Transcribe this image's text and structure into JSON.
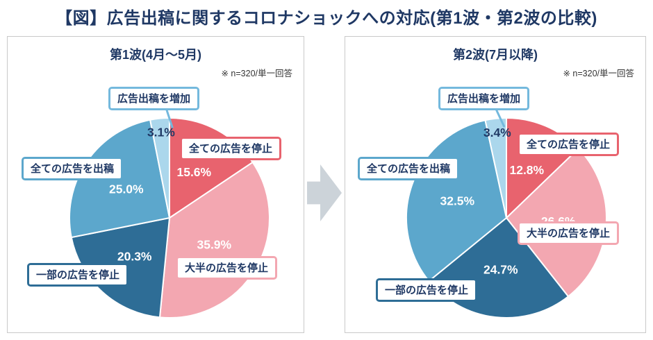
{
  "title": "【図】広告出稿に関するコロナショックへの対応(第1波・第2波の比較)",
  "colors": {
    "navy": "#1f3864",
    "red": "#e8636e",
    "pink": "#f3a7b1",
    "dark_blue": "#2e6d96",
    "mid_blue": "#5ca7cc",
    "light_blue": "#abd7ec",
    "light_blue_border": "#74b9dd",
    "arrow_gray": "#ccd3d9",
    "panel_border": "#c9c9c9"
  },
  "chart_data": [
    {
      "type": "pie",
      "title": "第1波(4月〜5月)",
      "note": "※ n=320/単一回答",
      "start_angle": "top",
      "direction": "clockwise",
      "legend": "callouts",
      "slices": [
        {
          "label": "全ての広告を停止",
          "value": 15.6,
          "color_key": "red"
        },
        {
          "label": "大半の広告を停止",
          "value": 35.9,
          "color_key": "pink"
        },
        {
          "label": "一部の広告を停止",
          "value": 20.3,
          "color_key": "dark_blue"
        },
        {
          "label": "全ての広告を出稿",
          "value": 25.0,
          "color_key": "mid_blue"
        },
        {
          "label": "広告出稿を増加",
          "value": 3.1,
          "color_key": "light_blue"
        }
      ]
    },
    {
      "type": "pie",
      "title": "第2波(7月以降)",
      "note": "※ n=320/単一回答",
      "start_angle": "top",
      "direction": "clockwise",
      "legend": "callouts",
      "slices": [
        {
          "label": "全ての広告を停止",
          "value": 12.8,
          "color_key": "red"
        },
        {
          "label": "大半の広告を停止",
          "value": 26.6,
          "color_key": "pink"
        },
        {
          "label": "一部の広告を停止",
          "value": 24.7,
          "color_key": "dark_blue"
        },
        {
          "label": "全ての広告を出稿",
          "value": 32.5,
          "color_key": "mid_blue"
        },
        {
          "label": "広告出稿を増加",
          "value": 3.4,
          "color_key": "light_blue"
        }
      ]
    }
  ]
}
